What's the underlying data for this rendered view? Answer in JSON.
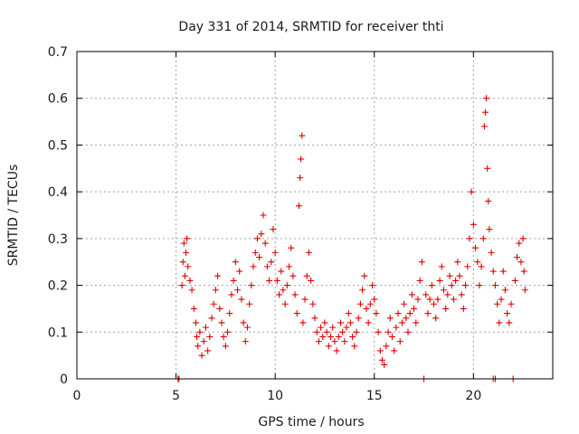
{
  "chart_data": {
    "type": "scatter",
    "title": "Day 331 of 2014, SRMTID for receiver thti",
    "xlabel": "GPS time / hours",
    "ylabel": "SRMTID / TECUs",
    "xlim": [
      0,
      24
    ],
    "ylim": [
      0,
      0.7
    ],
    "x_ticks": [
      "0",
      "5",
      "10",
      "15",
      "20"
    ],
    "y_ticks": [
      "0",
      "0.1",
      "0.2",
      "0.3",
      "0.4",
      "0.5",
      "0.6",
      "0.7"
    ],
    "marker": "plus",
    "color": "#e00000",
    "grid": true,
    "series": [
      {
        "name": "SRMTID",
        "points": [
          [
            5.1,
            0.0
          ],
          [
            5.15,
            0.0
          ],
          [
            5.3,
            0.2
          ],
          [
            5.35,
            0.25
          ],
          [
            5.4,
            0.29
          ],
          [
            5.45,
            0.22
          ],
          [
            5.5,
            0.27
          ],
          [
            5.55,
            0.3
          ],
          [
            5.6,
            0.24
          ],
          [
            5.7,
            0.21
          ],
          [
            5.8,
            0.19
          ],
          [
            5.9,
            0.15
          ],
          [
            6.0,
            0.12
          ],
          [
            6.05,
            0.09
          ],
          [
            6.1,
            0.07
          ],
          [
            6.2,
            0.1
          ],
          [
            6.3,
            0.05
          ],
          [
            6.4,
            0.08
          ],
          [
            6.5,
            0.11
          ],
          [
            6.6,
            0.06
          ],
          [
            6.7,
            0.09
          ],
          [
            6.8,
            0.13
          ],
          [
            6.9,
            0.16
          ],
          [
            7.0,
            0.19
          ],
          [
            7.1,
            0.22
          ],
          [
            7.2,
            0.15
          ],
          [
            7.3,
            0.12
          ],
          [
            7.4,
            0.09
          ],
          [
            7.5,
            0.07
          ],
          [
            7.6,
            0.1
          ],
          [
            7.7,
            0.14
          ],
          [
            7.8,
            0.18
          ],
          [
            7.9,
            0.21
          ],
          [
            8.0,
            0.25
          ],
          [
            8.1,
            0.19
          ],
          [
            8.2,
            0.23
          ],
          [
            8.3,
            0.17
          ],
          [
            8.4,
            0.12
          ],
          [
            8.5,
            0.08
          ],
          [
            8.6,
            0.11
          ],
          [
            8.7,
            0.16
          ],
          [
            8.8,
            0.2
          ],
          [
            8.9,
            0.24
          ],
          [
            9.0,
            0.27
          ],
          [
            9.1,
            0.3
          ],
          [
            9.2,
            0.26
          ],
          [
            9.3,
            0.31
          ],
          [
            9.4,
            0.35
          ],
          [
            9.5,
            0.29
          ],
          [
            9.6,
            0.24
          ],
          [
            9.7,
            0.21
          ],
          [
            9.8,
            0.25
          ],
          [
            9.9,
            0.32
          ],
          [
            10.0,
            0.27
          ],
          [
            10.1,
            0.21
          ],
          [
            10.2,
            0.18
          ],
          [
            10.3,
            0.23
          ],
          [
            10.4,
            0.19
          ],
          [
            10.5,
            0.16
          ],
          [
            10.6,
            0.2
          ],
          [
            10.7,
            0.24
          ],
          [
            10.8,
            0.28
          ],
          [
            10.9,
            0.22
          ],
          [
            11.0,
            0.18
          ],
          [
            11.1,
            0.14
          ],
          [
            11.2,
            0.37
          ],
          [
            11.25,
            0.43
          ],
          [
            11.3,
            0.47
          ],
          [
            11.35,
            0.52
          ],
          [
            11.4,
            0.12
          ],
          [
            11.5,
            0.17
          ],
          [
            11.6,
            0.22
          ],
          [
            11.7,
            0.27
          ],
          [
            11.8,
            0.21
          ],
          [
            11.9,
            0.16
          ],
          [
            12.0,
            0.13
          ],
          [
            12.1,
            0.1
          ],
          [
            12.2,
            0.08
          ],
          [
            12.3,
            0.11
          ],
          [
            12.4,
            0.09
          ],
          [
            12.5,
            0.12
          ],
          [
            12.6,
            0.1
          ],
          [
            12.7,
            0.07
          ],
          [
            12.8,
            0.09
          ],
          [
            12.9,
            0.11
          ],
          [
            13.0,
            0.08
          ],
          [
            13.1,
            0.06
          ],
          [
            13.2,
            0.09
          ],
          [
            13.3,
            0.12
          ],
          [
            13.4,
            0.1
          ],
          [
            13.5,
            0.08
          ],
          [
            13.6,
            0.11
          ],
          [
            13.7,
            0.14
          ],
          [
            13.8,
            0.12
          ],
          [
            13.9,
            0.09
          ],
          [
            14.0,
            0.07
          ],
          [
            14.1,
            0.1
          ],
          [
            14.2,
            0.13
          ],
          [
            14.3,
            0.16
          ],
          [
            14.4,
            0.19
          ],
          [
            14.5,
            0.22
          ],
          [
            14.6,
            0.15
          ],
          [
            14.7,
            0.12
          ],
          [
            14.8,
            0.16
          ],
          [
            14.9,
            0.2
          ],
          [
            15.0,
            0.17
          ],
          [
            15.1,
            0.14
          ],
          [
            15.2,
            0.1
          ],
          [
            15.3,
            0.06
          ],
          [
            15.4,
            0.04
          ],
          [
            15.5,
            0.03
          ],
          [
            15.6,
            0.07
          ],
          [
            15.7,
            0.1
          ],
          [
            15.8,
            0.13
          ],
          [
            15.9,
            0.09
          ],
          [
            16.0,
            0.06
          ],
          [
            16.1,
            0.11
          ],
          [
            16.2,
            0.14
          ],
          [
            16.3,
            0.08
          ],
          [
            16.4,
            0.12
          ],
          [
            16.5,
            0.16
          ],
          [
            16.6,
            0.13
          ],
          [
            16.7,
            0.1
          ],
          [
            16.8,
            0.14
          ],
          [
            16.9,
            0.18
          ],
          [
            17.0,
            0.15
          ],
          [
            17.1,
            0.12
          ],
          [
            17.2,
            0.17
          ],
          [
            17.3,
            0.21
          ],
          [
            17.4,
            0.25
          ],
          [
            17.5,
            0.0
          ],
          [
            17.6,
            0.18
          ],
          [
            17.7,
            0.14
          ],
          [
            17.8,
            0.17
          ],
          [
            17.9,
            0.2
          ],
          [
            18.0,
            0.16
          ],
          [
            18.1,
            0.13
          ],
          [
            18.2,
            0.17
          ],
          [
            18.3,
            0.21
          ],
          [
            18.4,
            0.24
          ],
          [
            18.5,
            0.19
          ],
          [
            18.6,
            0.15
          ],
          [
            18.7,
            0.18
          ],
          [
            18.8,
            0.22
          ],
          [
            18.9,
            0.2
          ],
          [
            19.0,
            0.17
          ],
          [
            19.1,
            0.21
          ],
          [
            19.2,
            0.25
          ],
          [
            19.3,
            0.22
          ],
          [
            19.4,
            0.18
          ],
          [
            19.5,
            0.15
          ],
          [
            19.6,
            0.2
          ],
          [
            19.7,
            0.24
          ],
          [
            19.8,
            0.3
          ],
          [
            19.9,
            0.4
          ],
          [
            20.0,
            0.33
          ],
          [
            20.1,
            0.28
          ],
          [
            20.2,
            0.25
          ],
          [
            20.3,
            0.2
          ],
          [
            20.4,
            0.24
          ],
          [
            20.5,
            0.3
          ],
          [
            20.55,
            0.54
          ],
          [
            20.6,
            0.57
          ],
          [
            20.65,
            0.6
          ],
          [
            20.7,
            0.45
          ],
          [
            20.75,
            0.38
          ],
          [
            20.8,
            0.32
          ],
          [
            20.9,
            0.27
          ],
          [
            21.0,
            0.23
          ],
          [
            21.1,
            0.2
          ],
          [
            21.0,
            0.0
          ],
          [
            21.1,
            0.0
          ],
          [
            21.2,
            0.16
          ],
          [
            21.3,
            0.12
          ],
          [
            21.4,
            0.17
          ],
          [
            21.5,
            0.23
          ],
          [
            21.6,
            0.19
          ],
          [
            21.7,
            0.14
          ],
          [
            21.8,
            0.12
          ],
          [
            21.9,
            0.16
          ],
          [
            22.0,
            0.0
          ],
          [
            22.1,
            0.21
          ],
          [
            22.2,
            0.26
          ],
          [
            22.3,
            0.29
          ],
          [
            22.4,
            0.25
          ],
          [
            22.5,
            0.3
          ],
          [
            22.55,
            0.23
          ],
          [
            22.6,
            0.19
          ]
        ]
      }
    ]
  }
}
